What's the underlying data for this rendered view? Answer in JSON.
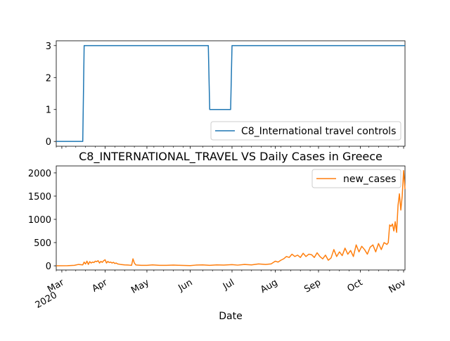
{
  "title": "C8_INTERNATIONAL_TRAVEL VS Daily Cases in Greece",
  "xlabel": "Date",
  "x_ticks": [
    {
      "date": "2020-03-01",
      "label": "Mar",
      "sub": "2020"
    },
    {
      "date": "2020-04-01",
      "label": "Apr",
      "sub": ""
    },
    {
      "date": "2020-05-01",
      "label": "May",
      "sub": ""
    },
    {
      "date": "2020-06-01",
      "label": "Jun",
      "sub": ""
    },
    {
      "date": "2020-07-01",
      "label": "Jul",
      "sub": ""
    },
    {
      "date": "2020-08-01",
      "label": "Aug",
      "sub": ""
    },
    {
      "date": "2020-09-01",
      "label": "Sep",
      "sub": ""
    },
    {
      "date": "2020-10-01",
      "label": "Oct",
      "sub": ""
    },
    {
      "date": "2020-11-01",
      "label": "Nov",
      "sub": ""
    }
  ],
  "chart_data": [
    {
      "type": "line",
      "title": "",
      "xlabel": "",
      "ylabel": "",
      "xlim": [
        "2020-02-26",
        "2020-11-02"
      ],
      "ylim": [
        -0.15,
        3.15
      ],
      "yticks": [
        0,
        1,
        2,
        3
      ],
      "grid": false,
      "legend_position": "lower-right",
      "series": [
        {
          "name": "C8_International travel controls",
          "color": "#1f77b4",
          "x": [
            "2020-02-26",
            "2020-03-16",
            "2020-03-17",
            "2020-06-14",
            "2020-06-15",
            "2020-06-30",
            "2020-07-01",
            "2020-11-02"
          ],
          "y": [
            0,
            0,
            3,
            3,
            1,
            1,
            3,
            3
          ]
        }
      ]
    },
    {
      "type": "line",
      "title": "C8_INTERNATIONAL_TRAVEL VS Daily Cases in Greece",
      "xlabel": "Date",
      "ylabel": "",
      "xlim": [
        "2020-02-26",
        "2020-11-02"
      ],
      "ylim": [
        -90,
        2150
      ],
      "yticks": [
        0,
        500,
        1000,
        1500,
        2000
      ],
      "grid": false,
      "legend_position": "top-right",
      "series": [
        {
          "name": "new_cases",
          "color": "#ff7f0e",
          "x": [
            "2020-02-26",
            "2020-03-05",
            "2020-03-10",
            "2020-03-13",
            "2020-03-16",
            "2020-03-17",
            "2020-03-18",
            "2020-03-19",
            "2020-03-20",
            "2020-03-21",
            "2020-03-22",
            "2020-03-23",
            "2020-03-24",
            "2020-03-25",
            "2020-03-26",
            "2020-03-27",
            "2020-03-28",
            "2020-03-29",
            "2020-03-30",
            "2020-03-31",
            "2020-04-01",
            "2020-04-02",
            "2020-04-03",
            "2020-04-04",
            "2020-04-05",
            "2020-04-06",
            "2020-04-07",
            "2020-04-08",
            "2020-04-09",
            "2020-04-10",
            "2020-04-12",
            "2020-04-15",
            "2020-04-18",
            "2020-04-20",
            "2020-04-21",
            "2020-04-22",
            "2020-04-23",
            "2020-04-24",
            "2020-04-27",
            "2020-05-01",
            "2020-05-05",
            "2020-05-10",
            "2020-05-15",
            "2020-05-20",
            "2020-05-25",
            "2020-06-01",
            "2020-06-05",
            "2020-06-10",
            "2020-06-15",
            "2020-06-20",
            "2020-06-25",
            "2020-07-01",
            "2020-07-05",
            "2020-07-10",
            "2020-07-15",
            "2020-07-20",
            "2020-07-25",
            "2020-07-29",
            "2020-08-01",
            "2020-08-03",
            "2020-08-05",
            "2020-08-07",
            "2020-08-09",
            "2020-08-11",
            "2020-08-13",
            "2020-08-15",
            "2020-08-17",
            "2020-08-19",
            "2020-08-21",
            "2020-08-23",
            "2020-08-25",
            "2020-08-27",
            "2020-08-29",
            "2020-08-31",
            "2020-09-02",
            "2020-09-04",
            "2020-09-06",
            "2020-09-08",
            "2020-09-10",
            "2020-09-12",
            "2020-09-14",
            "2020-09-16",
            "2020-09-18",
            "2020-09-20",
            "2020-09-22",
            "2020-09-24",
            "2020-09-26",
            "2020-09-28",
            "2020-09-30",
            "2020-10-02",
            "2020-10-04",
            "2020-10-06",
            "2020-10-08",
            "2020-10-10",
            "2020-10-12",
            "2020-10-14",
            "2020-10-16",
            "2020-10-18",
            "2020-10-20",
            "2020-10-21",
            "2020-10-22",
            "2020-10-23",
            "2020-10-24",
            "2020-10-25",
            "2020-10-26",
            "2020-10-27",
            "2020-10-28",
            "2020-10-29",
            "2020-10-30",
            "2020-10-31",
            "2020-11-01",
            "2020-11-02"
          ],
          "y": [
            0,
            2,
            10,
            30,
            20,
            80,
            40,
            100,
            30,
            90,
            60,
            80,
            70,
            100,
            90,
            110,
            60,
            95,
            75,
            110,
            130,
            60,
            95,
            70,
            80,
            60,
            75,
            50,
            60,
            40,
            30,
            20,
            15,
            10,
            150,
            60,
            20,
            15,
            10,
            10,
            20,
            10,
            10,
            15,
            10,
            5,
            15,
            20,
            10,
            20,
            15,
            25,
            15,
            30,
            20,
            40,
            30,
            40,
            100,
            80,
            120,
            150,
            200,
            180,
            250,
            200,
            230,
            180,
            270,
            200,
            250,
            240,
            180,
            280,
            200,
            150,
            230,
            120,
            170,
            350,
            200,
            300,
            220,
            380,
            250,
            330,
            200,
            450,
            300,
            420,
            350,
            250,
            400,
            450,
            300,
            480,
            350,
            500,
            460,
            500,
            880,
            850,
            900,
            750,
            950,
            720,
            1300,
            1550,
            1200,
            1500,
            2050,
            1650
          ]
        }
      ]
    }
  ]
}
